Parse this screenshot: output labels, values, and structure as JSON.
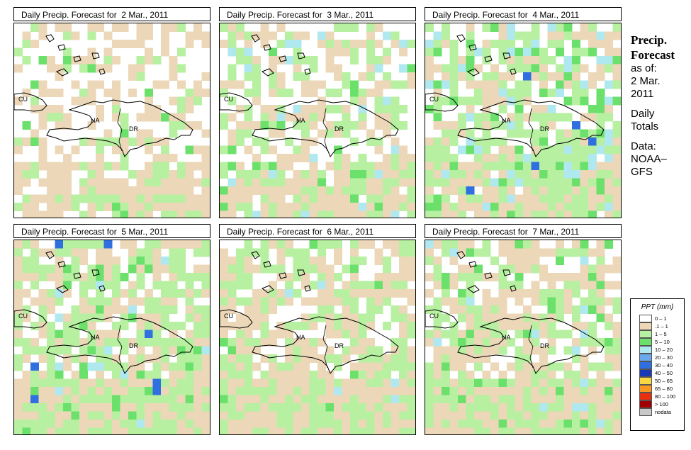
{
  "side_panel": {
    "title_line1": "Precip.",
    "title_line2": "Forecast",
    "as_of": "as of:",
    "date_line1": "2 Mar.",
    "date_line2": "2011",
    "totals_line1": "Daily",
    "totals_line2": "Totals",
    "data_line1": "Data:",
    "data_line2": "NOAA–",
    "data_line3": "GFS"
  },
  "map_labels": {
    "cuba": "CU",
    "haiti": "HA",
    "dominican_republic": "DR"
  },
  "panels": [
    {
      "title": "Daily Precip. Forecast for  2 Mar., 2011"
    },
    {
      "title": "Daily Precip. Forecast for  3 Mar., 2011"
    },
    {
      "title": "Daily Precip. Forecast for  4 Mar., 2011"
    },
    {
      "title": "Daily Precip. Forecast for  5 Mar., 2011"
    },
    {
      "title": "Daily Precip. Forecast for  6 Mar., 2011"
    },
    {
      "title": "Daily Precip. Forecast for  7 Mar., 2011"
    }
  ],
  "legend": {
    "title": "PPT (mm)",
    "items": [
      {
        "label": "0 – 1",
        "color": "#ffffff"
      },
      {
        "label": ".1 – 1",
        "color": "#ecd8b8"
      },
      {
        "label": "1 – 5",
        "color": "#b6f0a0"
      },
      {
        "label": "5 – 10",
        "color": "#6be06b"
      },
      {
        "label": "10 – 20",
        "color": "#b0e8f0"
      },
      {
        "label": "20 – 30",
        "color": "#6aa8ee"
      },
      {
        "label": "30 – 40",
        "color": "#2f6fe0"
      },
      {
        "label": "40 – 50",
        "color": "#1838b8"
      },
      {
        "label": "50 – 65",
        "color": "#f8d840"
      },
      {
        "label": "65 – 80",
        "color": "#f89820"
      },
      {
        "label": "80 – 100",
        "color": "#e83010"
      },
      {
        "label": "> 100",
        "color": "#a00000"
      },
      {
        "label": "nodata",
        "color": "#c8c8c8"
      }
    ]
  }
}
